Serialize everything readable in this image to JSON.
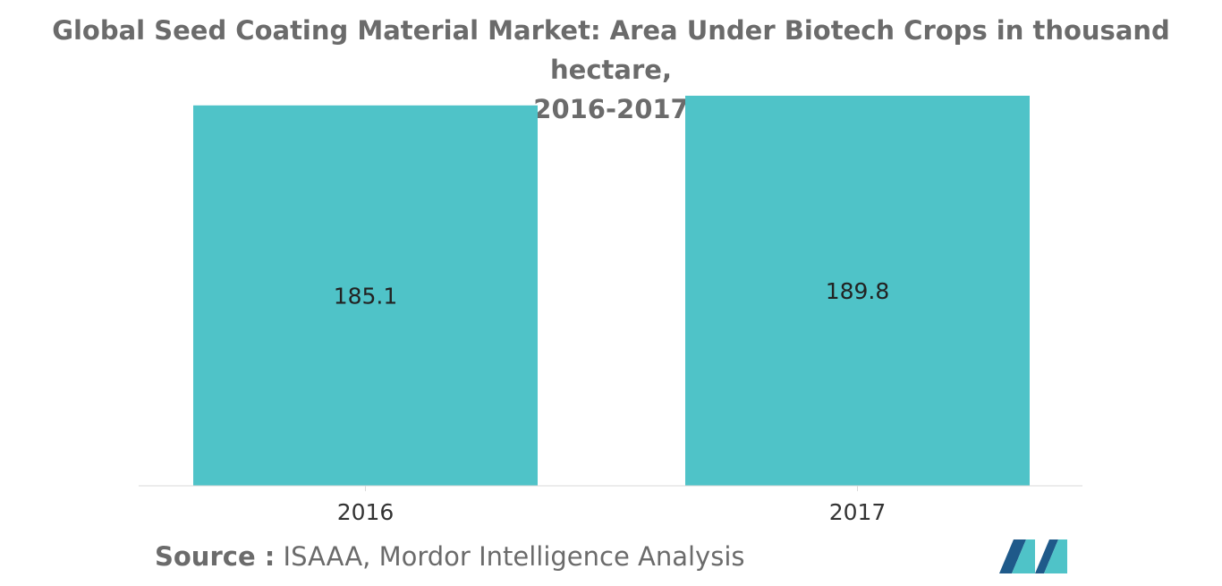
{
  "title_lines": [
    "Global Seed Coating Material Market: Area Under Biotech Crops in thousand hectare,",
    "2016-2017"
  ],
  "source": {
    "prefix": "Source :",
    "text": "ISAAA, Mordor Intelligence Analysis"
  },
  "logo_icon": "mordor-intelligence-logo",
  "colors": {
    "bar": "#4fc3c8",
    "title": "#6b6b6b",
    "logo_dark": "#1f5a8a",
    "logo_light": "#4fc3c8"
  },
  "chart_data": {
    "type": "bar",
    "categories": [
      "2016",
      "2017"
    ],
    "values": [
      185.1,
      189.8
    ],
    "data_labels": [
      "185.1",
      "189.8"
    ],
    "title": "Global Seed Coating Material Market: Area Under Biotech Crops in thousand hectare, 2016-2017",
    "xlabel": "",
    "ylabel": "",
    "ylim": [
      0,
      189.8
    ],
    "grid": false,
    "legend": "none"
  }
}
